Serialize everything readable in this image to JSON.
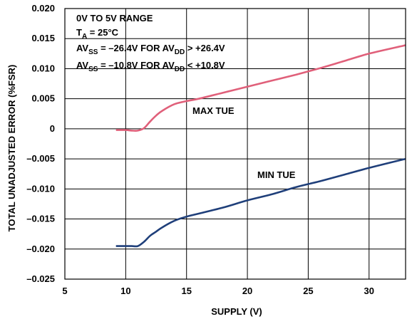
{
  "chart_data": {
    "type": "line",
    "xlabel": "SUPPLY (V)",
    "ylabel": "TOTAL UNADJUSTED ERROR (%FSR)",
    "xlim": [
      5,
      33
    ],
    "ylim": [
      -0.025,
      0.02
    ],
    "x_ticks": [
      5,
      10,
      15,
      20,
      25,
      30
    ],
    "x_tick_labels": [
      "5",
      "10",
      "15",
      "20",
      "25",
      "30"
    ],
    "y_ticks": [
      0.02,
      0.015,
      0.01,
      0.005,
      0,
      -0.005,
      -0.01,
      -0.015,
      -0.02,
      -0.025
    ],
    "y_tick_labels": [
      "0.020",
      "0.015",
      "0.010",
      "0.005",
      "0",
      "–0.005",
      "–0.010",
      "–0.015",
      "–0.020",
      "–0.025"
    ],
    "grid": true,
    "annotation": {
      "line1": "0V TO 5V RANGE",
      "line2": {
        "main": "T",
        "sub": "A",
        "rest": " = 25°C"
      },
      "line3": {
        "p1": "AV",
        "s1": "SS",
        "p2": " = –26.4V FOR AV",
        "s2": "DD",
        "p3": " > +26.4V"
      },
      "line4": {
        "p1": "AV",
        "s1": "SS",
        "p2": " = –10.8V FOR AV",
        "s2": "DD",
        "p3": " < +10.8V"
      }
    },
    "series": [
      {
        "name": "MAX TUE",
        "color": "#e0607a",
        "x": [
          9.2,
          10,
          10.5,
          11,
          11.5,
          12,
          12.5,
          13,
          14,
          15,
          16,
          18,
          20,
          22,
          24,
          26,
          28,
          30,
          33
        ],
        "y": [
          -0.0002,
          -0.0002,
          -0.0003,
          -0.0003,
          0.0001,
          0.0012,
          0.0022,
          0.003,
          0.0041,
          0.0046,
          0.005,
          0.006,
          0.007,
          0.008,
          0.009,
          0.0101,
          0.0113,
          0.0125,
          0.0139
        ]
      },
      {
        "name": "MIN TUE",
        "color": "#1f3f7a",
        "x": [
          9.2,
          10,
          10.5,
          11,
          11.5,
          12,
          12.5,
          13,
          14,
          15,
          16,
          18,
          20,
          22,
          24,
          26,
          28,
          30,
          33
        ],
        "y": [
          -0.0195,
          -0.0195,
          -0.0195,
          -0.0195,
          -0.0188,
          -0.0178,
          -0.0171,
          -0.0164,
          -0.0153,
          -0.0146,
          -0.0141,
          -0.0131,
          -0.0119,
          -0.0109,
          -0.0097,
          -0.0087,
          -0.0076,
          -0.0065,
          -0.005
        ]
      }
    ]
  }
}
